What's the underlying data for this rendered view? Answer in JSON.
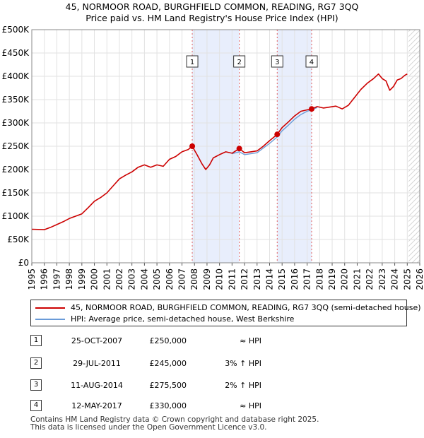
{
  "title_line1": "45, NORMOOR ROAD, BURGHFIELD COMMON, READING, RG7 3QQ",
  "title_line2": "Price paid vs. HM Land Registry's House Price Index (HPI)",
  "colors": {
    "price": "#cc0000",
    "hpi": "#6a9bd8",
    "shade": "#e8eefc",
    "marker_line": "#e06060"
  },
  "chart_data": {
    "type": "line",
    "title": "45, NORMOOR ROAD, BURGHFIELD COMMON, READING, RG7 3QQ — Price paid vs. HM Land Registry's House Price Index (HPI)",
    "xlabel": "",
    "ylabel": "",
    "xlim": [
      1995,
      2026
    ],
    "ylim": [
      0,
      500000
    ],
    "x_ticks": [
      "1995",
      "1996",
      "1997",
      "1998",
      "1999",
      "2000",
      "2001",
      "2002",
      "2003",
      "2004",
      "2005",
      "2006",
      "2007",
      "2008",
      "2009",
      "2010",
      "2011",
      "2012",
      "2013",
      "2014",
      "2015",
      "2016",
      "2017",
      "2018",
      "2019",
      "2020",
      "2021",
      "2022",
      "2023",
      "2024",
      "2025",
      "2026"
    ],
    "y_ticks": [
      {
        "value": 0,
        "label": "£0"
      },
      {
        "value": 50000,
        "label": "£50K"
      },
      {
        "value": 100000,
        "label": "£100K"
      },
      {
        "value": 150000,
        "label": "£150K"
      },
      {
        "value": 200000,
        "label": "£200K"
      },
      {
        "value": 250000,
        "label": "£250K"
      },
      {
        "value": 300000,
        "label": "£300K"
      },
      {
        "value": 350000,
        "label": "£350K"
      },
      {
        "value": 400000,
        "label": "£400K"
      },
      {
        "value": 450000,
        "label": "£450K"
      },
      {
        "value": 500000,
        "label": "£500K"
      }
    ],
    "grid": true,
    "shaded_periods": [
      [
        2007.82,
        2011.58
      ],
      [
        2014.61,
        2017.36
      ]
    ],
    "future_hatch_from": 2025.1,
    "series": [
      {
        "name": "45, NORMOOR ROAD, BURGHFIELD COMMON, READING, RG7 3QQ (semi-detached house)",
        "x": [
          1995.0,
          1996.0,
          1996.5,
          1997.0,
          1997.5,
          1998.0,
          1998.5,
          1999.0,
          1999.5,
          2000.0,
          2000.5,
          2001.0,
          2001.5,
          2002.0,
          2002.5,
          2003.0,
          2003.5,
          2004.0,
          2004.5,
          2005.0,
          2005.5,
          2006.0,
          2006.5,
          2007.0,
          2007.5,
          2007.82,
          2008.2,
          2008.6,
          2008.9,
          2009.2,
          2009.5,
          2010.0,
          2010.5,
          2011.0,
          2011.58,
          2012.0,
          2012.5,
          2013.0,
          2013.5,
          2014.0,
          2014.61,
          2015.0,
          2015.5,
          2016.0,
          2016.5,
          2017.0,
          2017.36,
          2017.8,
          2018.3,
          2018.8,
          2019.3,
          2019.8,
          2020.3,
          2020.8,
          2021.3,
          2021.8,
          2022.3,
          2022.7,
          2023.0,
          2023.3,
          2023.6,
          2023.9,
          2024.2,
          2024.5,
          2024.8,
          2025.0
        ],
        "values": [
          72000,
          71000,
          76000,
          82000,
          88000,
          95000,
          100000,
          105000,
          118000,
          132000,
          140000,
          150000,
          165000,
          180000,
          188000,
          195000,
          205000,
          210000,
          205000,
          210000,
          207000,
          222000,
          228000,
          238000,
          243000,
          250000,
          232000,
          212000,
          200000,
          210000,
          225000,
          232000,
          238000,
          235000,
          245000,
          236000,
          238000,
          240000,
          250000,
          262000,
          275500,
          290000,
          302000,
          315000,
          325000,
          328000,
          330000,
          335000,
          332000,
          334000,
          336000,
          330000,
          338000,
          355000,
          372000,
          385000,
          395000,
          405000,
          395000,
          390000,
          370000,
          378000,
          392000,
          395000,
          402000,
          405000
        ]
      },
      {
        "name": "HPI: Average price, semi-detached house, West Berkshire",
        "x": [
          2011.0,
          2011.58,
          2012.0,
          2012.5,
          2013.0,
          2013.5,
          2014.0,
          2014.61,
          2015.0,
          2015.5,
          2016.0,
          2016.5,
          2017.0,
          2017.36,
          2017.8
        ],
        "values": [
          234000,
          238000,
          232000,
          234000,
          236000,
          246000,
          256000,
          270000,
          283000,
          295000,
          308000,
          318000,
          325000,
          328000,
          333000
        ]
      }
    ],
    "sales": [
      {
        "label": "1",
        "x": 2007.82,
        "value": 250000
      },
      {
        "label": "2",
        "x": 2011.58,
        "value": 245000
      },
      {
        "label": "3",
        "x": 2014.61,
        "value": 275500
      },
      {
        "label": "4",
        "x": 2017.36,
        "value": 330000
      }
    ]
  },
  "legend": {
    "price_label": "45, NORMOOR ROAD, BURGHFIELD COMMON, READING, RG7 3QQ (semi-detached house)",
    "hpi_label": "HPI: Average price, semi-detached house, West Berkshire"
  },
  "sales_table": [
    {
      "num": "1",
      "date": "25-OCT-2007",
      "price": "£250,000",
      "hpi": "≈ HPI"
    },
    {
      "num": "2",
      "date": "29-JUL-2011",
      "price": "£245,000",
      "hpi": "3% ↑ HPI"
    },
    {
      "num": "3",
      "date": "11-AUG-2014",
      "price": "£275,500",
      "hpi": "2% ↑ HPI"
    },
    {
      "num": "4",
      "date": "12-MAY-2017",
      "price": "£330,000",
      "hpi": "≈ HPI"
    }
  ],
  "footer": {
    "line1": "Contains HM Land Registry data © Crown copyright and database right 2025.",
    "line2": "This data is licensed under the Open Government Licence v3.0."
  }
}
